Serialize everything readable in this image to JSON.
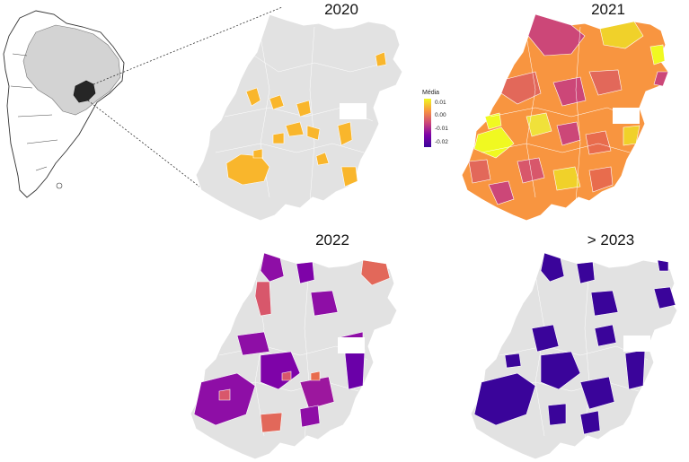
{
  "panels": [
    {
      "id": "p2020",
      "label": "2020"
    },
    {
      "id": "p2021",
      "label": "2021"
    },
    {
      "id": "p2022",
      "label": "2022"
    },
    {
      "id": "p2023",
      "label": "> 2023"
    }
  ],
  "legend": {
    "title": "Média",
    "ticks": [
      "0.01",
      "0.00",
      "-0.01",
      "-0.02"
    ]
  },
  "colors": {
    "background_region": "#e2e2e2",
    "south_america_land": "#ffffff",
    "brazil": "#d3d3d3",
    "goias_highlight": "#262626",
    "border": "#ffffff",
    "scale_high": "#f0f921",
    "scale_mid_high": "#f89540",
    "scale_mid": "#cc4778",
    "scale_mid_low": "#7e03a8",
    "scale_low": "#3a049a"
  }
}
